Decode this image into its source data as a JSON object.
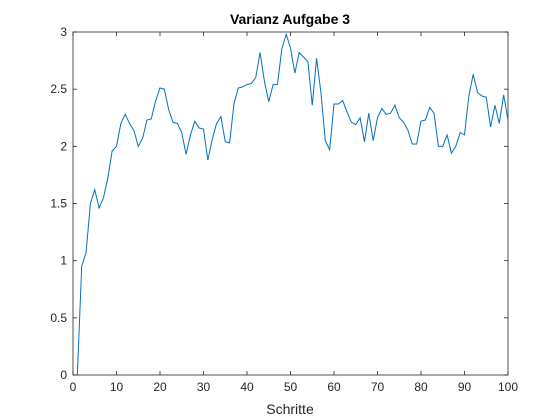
{
  "chart_data": {
    "type": "line",
    "title": "Varianz Aufgabe 3",
    "xlabel": "Schritte",
    "ylabel": "",
    "xlim": [
      0,
      100
    ],
    "ylim": [
      0,
      3
    ],
    "xticks": [
      0,
      10,
      20,
      30,
      40,
      50,
      60,
      70,
      80,
      90,
      100
    ],
    "yticks": [
      0,
      0.5,
      1,
      1.5,
      2,
      2.5,
      3
    ],
    "grid": false,
    "legend": "none",
    "line_color": "#0072BD",
    "x": [
      1,
      2,
      3,
      4,
      5,
      6,
      7,
      8,
      9,
      10,
      11,
      12,
      13,
      14,
      15,
      16,
      17,
      18,
      19,
      20,
      21,
      22,
      23,
      24,
      25,
      26,
      27,
      28,
      29,
      30,
      31,
      32,
      33,
      34,
      35,
      36,
      37,
      38,
      39,
      40,
      41,
      42,
      43,
      44,
      45,
      46,
      47,
      48,
      49,
      50,
      51,
      52,
      53,
      54,
      55,
      56,
      57,
      58,
      59,
      60,
      61,
      62,
      63,
      64,
      65,
      66,
      67,
      68,
      69,
      70,
      71,
      72,
      73,
      74,
      75,
      76,
      77,
      78,
      79,
      80,
      81,
      82,
      83,
      84,
      85,
      86,
      87,
      88,
      89,
      90,
      91,
      92,
      93,
      94,
      95,
      96,
      97,
      98,
      99,
      100
    ],
    "y": [
      0.0,
      0.95,
      1.07,
      1.5,
      1.62,
      1.46,
      1.55,
      1.72,
      1.96,
      2.0,
      2.2,
      2.28,
      2.2,
      2.14,
      2.0,
      2.07,
      2.23,
      2.24,
      2.4,
      2.51,
      2.5,
      2.32,
      2.21,
      2.2,
      2.12,
      1.93,
      2.1,
      2.22,
      2.16,
      2.15,
      1.88,
      2.06,
      2.2,
      2.26,
      2.04,
      2.03,
      2.37,
      2.51,
      2.52,
      2.54,
      2.55,
      2.6,
      2.82,
      2.57,
      2.39,
      2.54,
      2.54,
      2.85,
      2.98,
      2.86,
      2.64,
      2.82,
      2.78,
      2.74,
      2.36,
      2.77,
      2.47,
      2.05,
      1.97,
      2.37,
      2.37,
      2.4,
      2.3,
      2.21,
      2.19,
      2.25,
      2.04,
      2.29,
      2.05,
      2.25,
      2.33,
      2.28,
      2.29,
      2.36,
      2.25,
      2.21,
      2.14,
      2.02,
      2.02,
      2.22,
      2.23,
      2.34,
      2.29,
      2.0,
      2.0,
      2.1,
      1.94,
      2.0,
      2.12,
      2.1,
      2.44,
      2.63,
      2.47,
      2.44,
      2.43,
      2.17,
      2.36,
      2.2,
      2.45,
      2.23
    ]
  }
}
